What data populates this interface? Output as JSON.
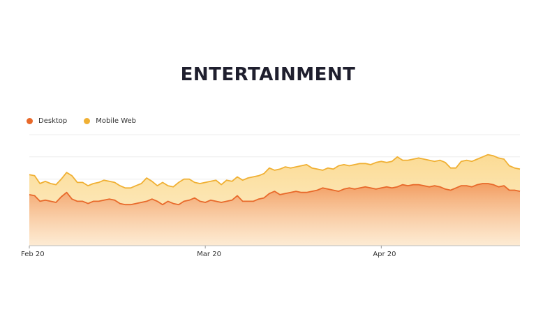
{
  "chart_data": {
    "type": "area",
    "title": "ENTERTAINMENT",
    "xlabel": "",
    "ylabel": "",
    "legend_position": "top-left",
    "grid": true,
    "x_ticks": [
      "Feb 20",
      "Mar 20",
      "Apr 20"
    ],
    "x_tick_index": [
      0,
      33,
      66
    ],
    "ylim": [
      0,
      100
    ],
    "y_grid": [
      20,
      40,
      60,
      80,
      100
    ],
    "series": [
      {
        "name": "Desktop",
        "color": "#e8692a",
        "fill": "#f2a46a",
        "values": [
          46,
          45,
          40,
          41,
          40,
          39,
          44,
          48,
          42,
          40,
          40,
          38,
          40,
          40,
          41,
          42,
          41,
          38,
          37,
          37,
          38,
          39,
          40,
          42,
          40,
          37,
          40,
          38,
          37,
          40,
          41,
          43,
          40,
          39,
          41,
          40,
          39,
          40,
          41,
          45,
          40,
          40,
          40,
          42,
          43,
          47,
          49,
          46,
          47,
          48,
          49,
          48,
          48,
          49,
          50,
          52,
          51,
          50,
          49,
          51,
          52,
          51,
          52,
          53,
          52,
          51,
          52,
          53,
          52,
          53,
          55,
          54,
          55,
          55,
          54,
          53,
          54,
          53,
          51,
          50,
          52,
          54,
          54,
          53,
          55,
          56,
          56,
          55,
          53,
          54,
          50,
          50,
          49
        ]
      },
      {
        "name": "Mobile Web",
        "color": "#f0b033",
        "fill": "#fbe0a8",
        "values": [
          64,
          63,
          56,
          58,
          56,
          55,
          60,
          66,
          63,
          57,
          57,
          54,
          56,
          57,
          59,
          58,
          57,
          54,
          52,
          52,
          54,
          56,
          61,
          58,
          54,
          57,
          54,
          53,
          57,
          60,
          60,
          57,
          56,
          57,
          58,
          59,
          55,
          59,
          58,
          62,
          59,
          61,
          62,
          63,
          65,
          70,
          68,
          69,
          71,
          70,
          71,
          72,
          73,
          70,
          69,
          68,
          70,
          69,
          72,
          73,
          72,
          73,
          74,
          74,
          73,
          75,
          76,
          75,
          76,
          80,
          77,
          77,
          78,
          79,
          78,
          77,
          76,
          77,
          75,
          70,
          70,
          76,
          77,
          76,
          78,
          80,
          82,
          81,
          79,
          78,
          72,
          70,
          69
        ]
      }
    ]
  }
}
